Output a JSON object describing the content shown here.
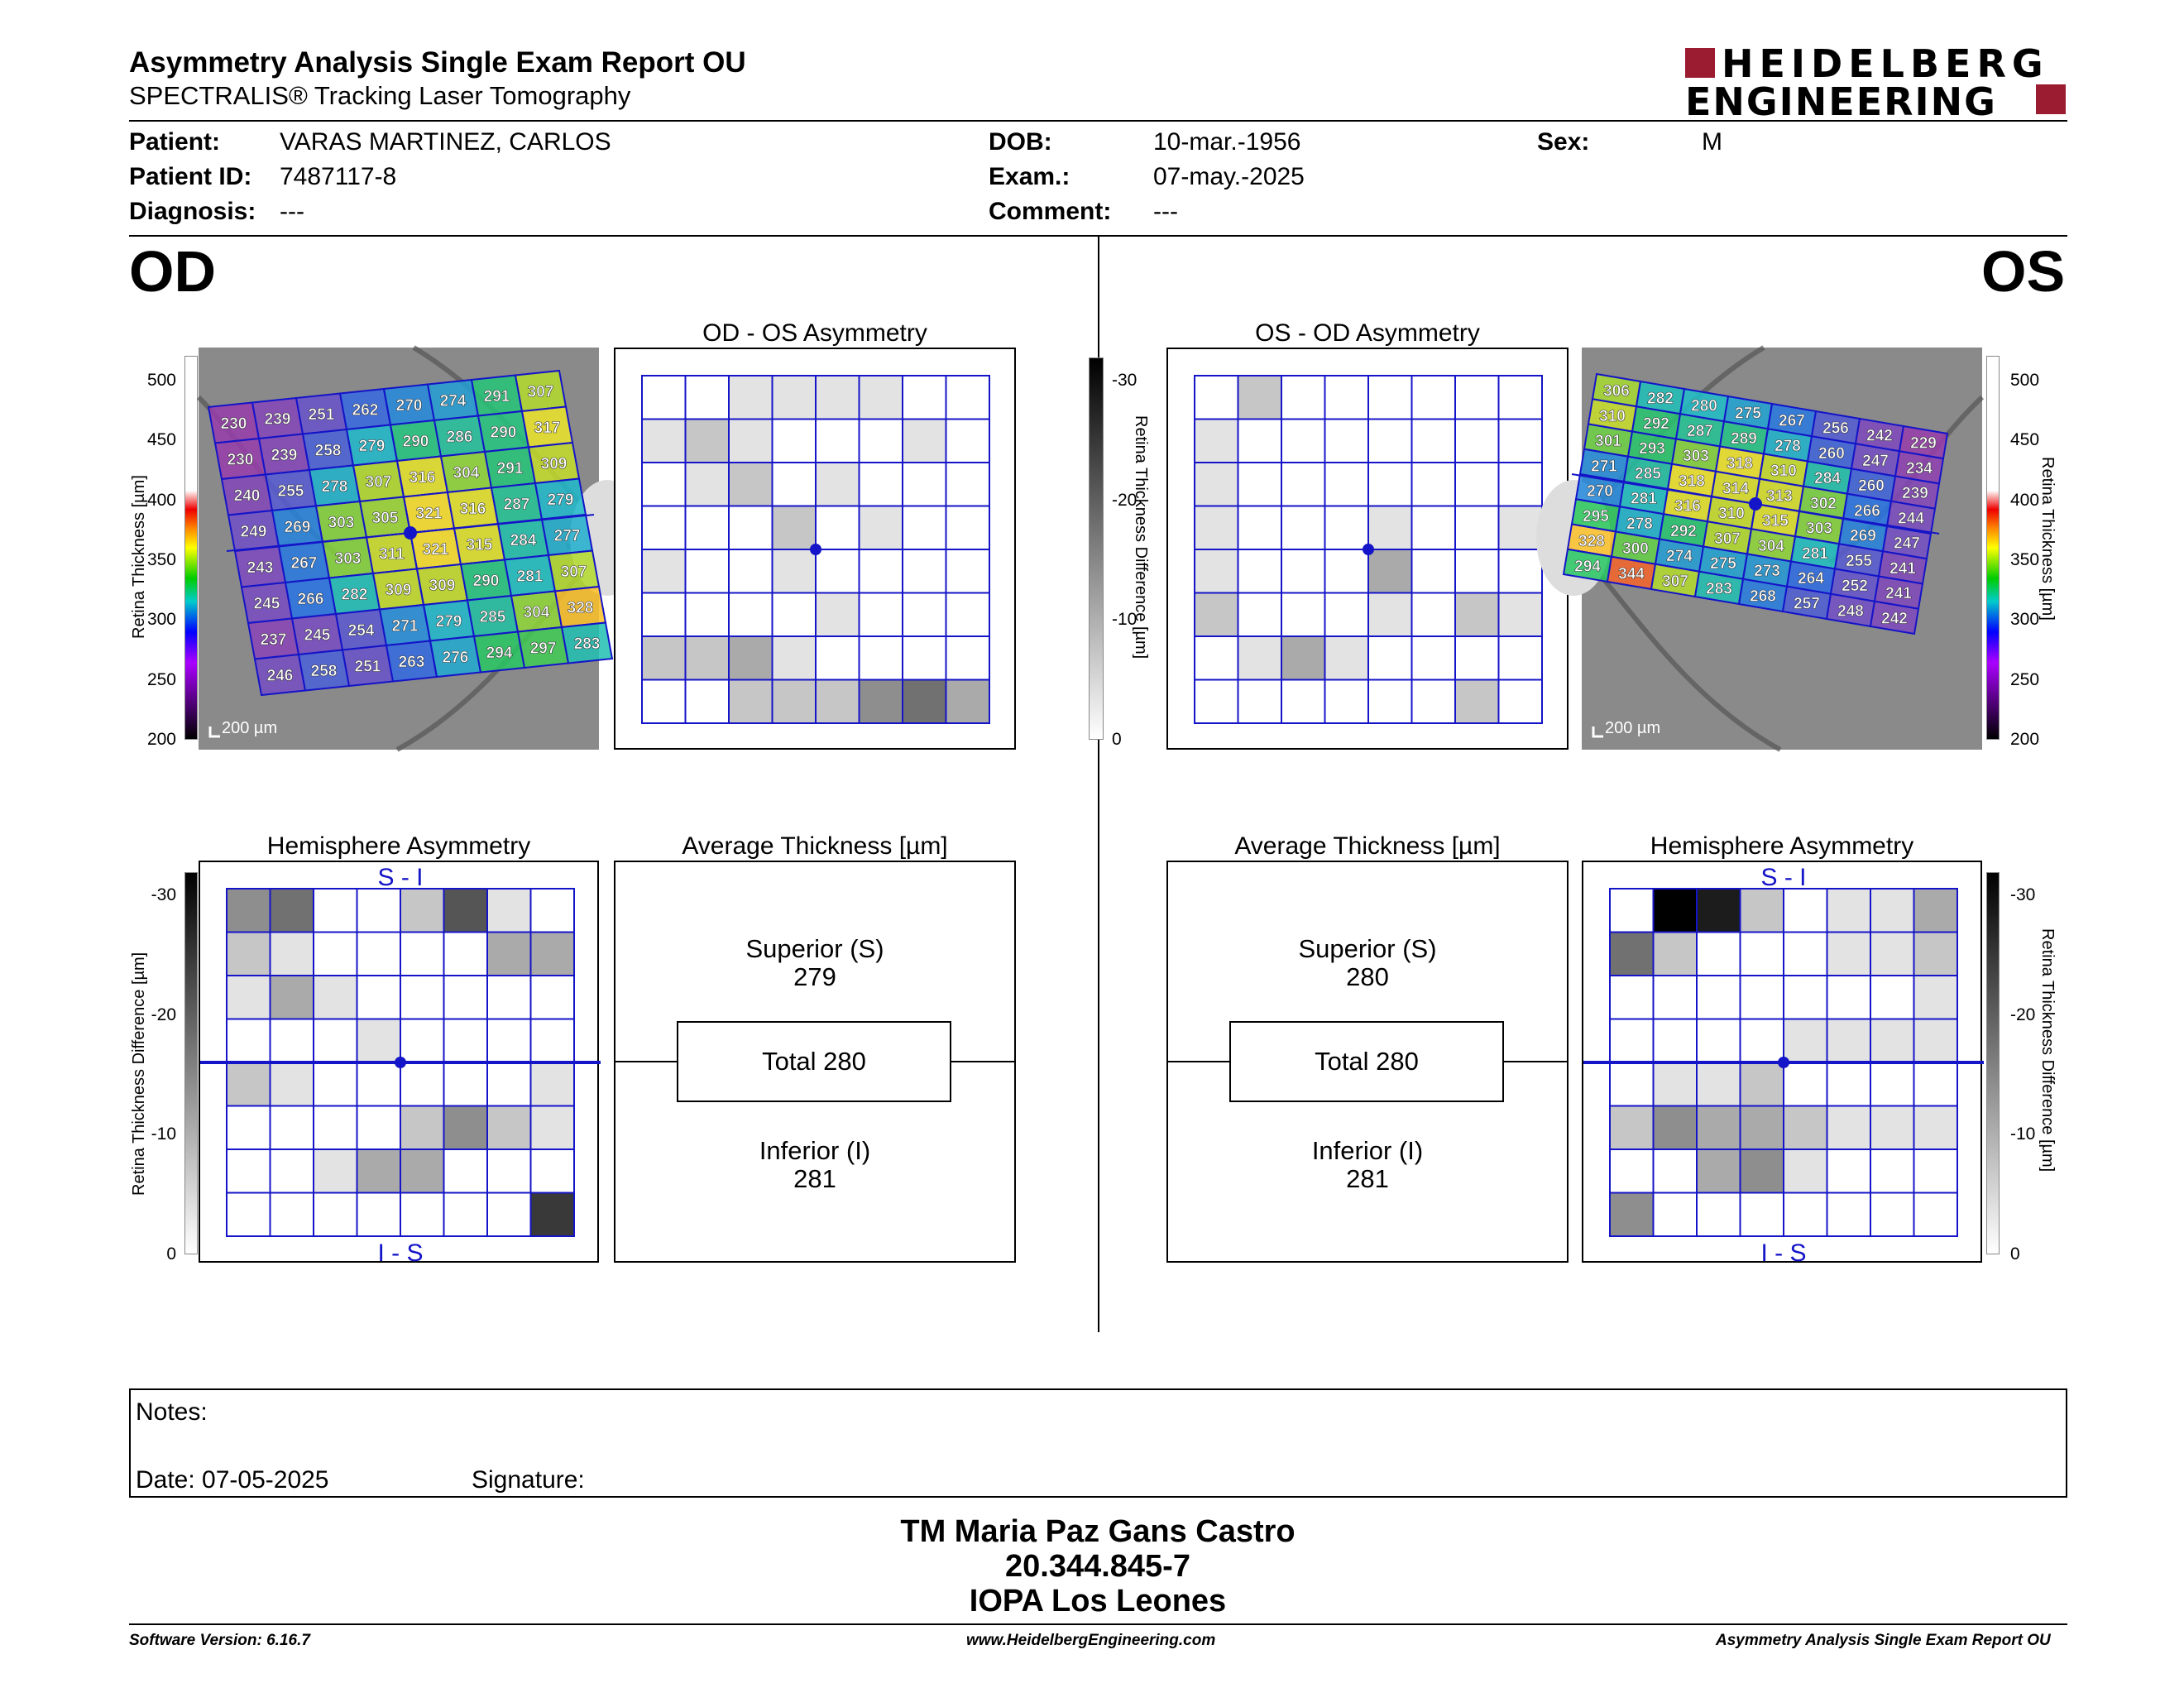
{
  "header": {
    "title": "Asymmetry Analysis Single Exam Report OU",
    "subtitle": "SPECTRALIS® Tracking Laser Tomography",
    "logo_line1": "HEIDELBERG",
    "logo_line2": "ENGINEERING"
  },
  "patient": {
    "name_label": "Patient:",
    "name": "VARAS MARTINEZ, CARLOS",
    "id_label": "Patient ID:",
    "id": "7487117-8",
    "diagnosis_label": "Diagnosis:",
    "diagnosis": "---",
    "dob_label": "DOB:",
    "dob": "10-mar.-1956",
    "exam_label": "Exam.:",
    "exam": "07-may.-2025",
    "comment_label": "Comment:",
    "comment": "---",
    "sex_label": "Sex:",
    "sex": "M"
  },
  "eyes": {
    "od": "OD",
    "os": "OS"
  },
  "panels": {
    "od_os_title": "OD - OS Asymmetry",
    "os_od_title": "OS - OD Asymmetry",
    "hemi_title": "Hemisphere Asymmetry",
    "avg_title": "Average Thickness [µm]",
    "s_i": "S - I",
    "i_s": "I - S",
    "scale_bar": "200 µm"
  },
  "scales": {
    "thickness_label": "Retina Thickness [µm]",
    "thickness_ticks": [
      "500",
      "450",
      "400",
      "350",
      "300",
      "250",
      "200"
    ],
    "difference_label": "Retina Thickness Difference [µm]",
    "difference_ticks": [
      "-30",
      "-20",
      "-10",
      "0"
    ]
  },
  "od_grid": [
    [
      230,
      239,
      251,
      262,
      270,
      274,
      291,
      307
    ],
    [
      230,
      239,
      258,
      279,
      290,
      286,
      290,
      317
    ],
    [
      240,
      255,
      278,
      307,
      316,
      304,
      291,
      309
    ],
    [
      249,
      269,
      303,
      305,
      321,
      316,
      287,
      279
    ],
    [
      243,
      267,
      303,
      311,
      321,
      315,
      284,
      277
    ],
    [
      245,
      266,
      282,
      309,
      309,
      290,
      281,
      307
    ],
    [
      237,
      245,
      254,
      271,
      279,
      285,
      304,
      328
    ],
    [
      246,
      258,
      251,
      263,
      276,
      294,
      297,
      283
    ]
  ],
  "os_grid": [
    [
      306,
      282,
      280,
      275,
      267,
      256,
      242,
      229
    ],
    [
      310,
      292,
      287,
      289,
      278,
      260,
      247,
      234
    ],
    [
      301,
      293,
      303,
      318,
      310,
      284,
      260,
      239
    ],
    [
      271,
      285,
      318,
      314,
      313,
      302,
      266,
      244
    ],
    [
      270,
      281,
      316,
      310,
      315,
      303,
      269,
      247
    ],
    [
      295,
      278,
      292,
      307,
      304,
      281,
      255,
      241
    ],
    [
      328,
      300,
      274,
      275,
      273,
      264,
      252,
      241
    ],
    [
      294,
      344,
      307,
      283,
      268,
      257,
      248,
      242
    ]
  ],
  "od_os_diff": [
    [
      0,
      0,
      1,
      1,
      1,
      1,
      0,
      0
    ],
    [
      1,
      2,
      1,
      0,
      0,
      0,
      1,
      0
    ],
    [
      0,
      1,
      2,
      0,
      1,
      0,
      0,
      0
    ],
    [
      0,
      0,
      0,
      2,
      0,
      1,
      0,
      0
    ],
    [
      1,
      0,
      0,
      1,
      0,
      0,
      0,
      0
    ],
    [
      0,
      0,
      0,
      0,
      1,
      0,
      0,
      0
    ],
    [
      2,
      2,
      3,
      1,
      0,
      0,
      0,
      0
    ],
    [
      0,
      0,
      2,
      2,
      2,
      4,
      5,
      3
    ]
  ],
  "os_od_diff": [
    [
      0,
      2,
      0,
      0,
      0,
      0,
      0,
      0
    ],
    [
      1,
      0,
      0,
      0,
      0,
      0,
      0,
      0
    ],
    [
      1,
      0,
      0,
      0,
      0,
      0,
      0,
      0
    ],
    [
      1,
      0,
      0,
      0,
      1,
      0,
      0,
      1
    ],
    [
      1,
      0,
      0,
      0,
      3,
      0,
      0,
      0
    ],
    [
      2,
      0,
      0,
      0,
      1,
      0,
      2,
      1
    ],
    [
      0,
      1,
      3,
      1,
      0,
      0,
      0,
      0
    ],
    [
      0,
      0,
      0,
      0,
      0,
      0,
      2,
      0
    ]
  ],
  "od_hemi": [
    [
      4,
      5,
      0,
      0,
      2,
      6,
      1,
      0
    ],
    [
      2,
      1,
      0,
      0,
      0,
      0,
      3,
      3
    ],
    [
      1,
      3,
      1,
      0,
      0,
      0,
      0,
      0
    ],
    [
      0,
      0,
      0,
      1,
      0,
      0,
      0,
      0
    ],
    [
      2,
      1,
      0,
      0,
      0,
      0,
      0,
      1
    ],
    [
      0,
      0,
      0,
      0,
      2,
      4,
      2,
      1
    ],
    [
      0,
      0,
      1,
      3,
      3,
      0,
      0,
      0
    ],
    [
      0,
      0,
      0,
      0,
      0,
      0,
      0,
      7
    ]
  ],
  "os_hemi": [
    [
      0,
      9,
      8,
      2,
      0,
      1,
      1,
      3
    ],
    [
      5,
      2,
      0,
      0,
      0,
      1,
      1,
      2
    ],
    [
      0,
      0,
      0,
      0,
      0,
      0,
      0,
      1
    ],
    [
      0,
      0,
      0,
      0,
      1,
      1,
      1,
      1
    ],
    [
      0,
      1,
      1,
      2,
      0,
      0,
      0,
      0
    ],
    [
      2,
      4,
      3,
      3,
      2,
      1,
      1,
      1
    ],
    [
      0,
      0,
      3,
      4,
      1,
      0,
      0,
      0
    ],
    [
      4,
      0,
      0,
      0,
      0,
      0,
      0,
      0
    ]
  ],
  "od_avg": {
    "superior_label": "Superior (S)",
    "superior": "279",
    "total": "Total 280",
    "inferior_label": "Inferior (I)",
    "inferior": "281"
  },
  "os_avg": {
    "superior_label": "Superior (S)",
    "superior": "280",
    "total": "Total 280",
    "inferior_label": "Inferior (I)",
    "inferior": "281"
  },
  "notes": {
    "label": "Notes:",
    "date": "Date: 07-05-2025",
    "signature": "Signature:"
  },
  "signer": {
    "name": "TM Maria Paz Gans Castro",
    "rut": "20.344.845-7",
    "institution": "IOPA Los Leones"
  },
  "footer": {
    "version": "Software Version: 6.16.7",
    "website": "www.HeidelbergEngineering.com",
    "report": "Asymmetry Analysis Single Exam Report OU"
  },
  "colors": {
    "grid_blue": "#1414c8",
    "logo_red": "#9b1b30"
  }
}
